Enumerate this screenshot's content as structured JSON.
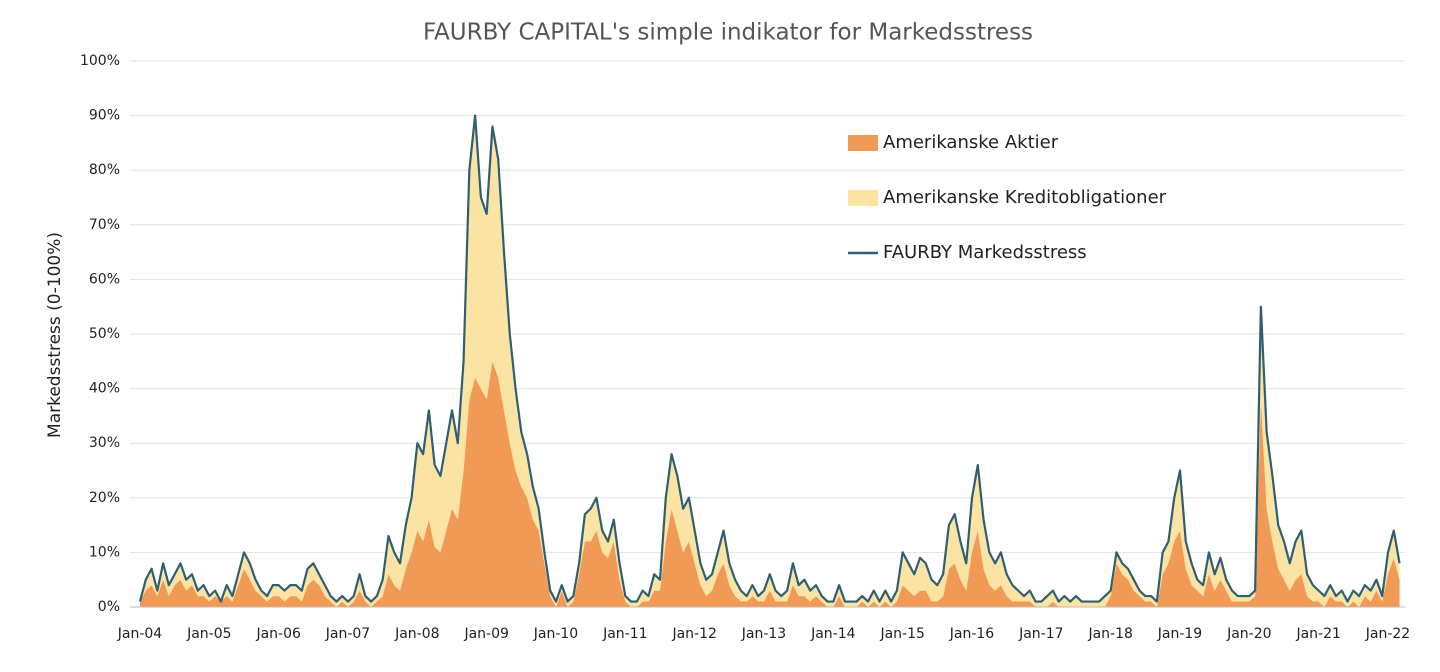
{
  "chart_data": {
    "type": "stacked_area_line",
    "title": "FAURBY CAPITAL's simple indikator for Markedsstress",
    "y_label": "Markedsstress (0-100%)",
    "categories": [
      "Jan-04",
      null,
      null,
      null,
      null,
      null,
      null,
      null,
      null,
      null,
      null,
      null,
      "Jan-05",
      null,
      null,
      null,
      null,
      null,
      null,
      null,
      null,
      null,
      null,
      null,
      "Jan-06",
      null,
      null,
      null,
      null,
      null,
      null,
      null,
      null,
      null,
      null,
      null,
      "Jan-07",
      null,
      null,
      null,
      null,
      null,
      null,
      null,
      null,
      null,
      null,
      null,
      "Jan-08",
      null,
      null,
      null,
      null,
      null,
      null,
      null,
      null,
      null,
      null,
      null,
      "Jan-09",
      null,
      null,
      null,
      null,
      null,
      null,
      null,
      null,
      null,
      null,
      null,
      "Jan-10",
      null,
      null,
      null,
      null,
      null,
      null,
      null,
      null,
      null,
      null,
      null,
      "Jan-11",
      null,
      null,
      null,
      null,
      null,
      null,
      null,
      null,
      null,
      null,
      null,
      "Jan-12",
      null,
      null,
      null,
      null,
      null,
      null,
      null,
      null,
      null,
      null,
      null,
      "Jan-13",
      null,
      null,
      null,
      null,
      null,
      null,
      null,
      null,
      null,
      null,
      null,
      "Jan-14",
      null,
      null,
      null,
      null,
      null,
      null,
      null,
      null,
      null,
      null,
      null,
      "Jan-15",
      null,
      null,
      null,
      null,
      null,
      null,
      null,
      null,
      null,
      null,
      null,
      "Jan-16",
      null,
      null,
      null,
      null,
      null,
      null,
      null,
      null,
      null,
      null,
      null,
      "Jan-17",
      null,
      null,
      null,
      null,
      null,
      null,
      null,
      null,
      null,
      null,
      null,
      "Jan-18",
      null,
      null,
      null,
      null,
      null,
      null,
      null,
      null,
      null,
      null,
      null,
      "Jan-19",
      null,
      null,
      null,
      null,
      null,
      null,
      null,
      null,
      null,
      null,
      null,
      "Jan-20",
      null,
      null,
      null,
      null,
      null,
      null,
      null,
      null,
      null,
      null,
      null,
      "Jan-21",
      null,
      null,
      null,
      null,
      null,
      null,
      null,
      null,
      null,
      null,
      null,
      "Jan-22",
      null,
      null
    ],
    "series": [
      {
        "name": "Amerikanske Aktier",
        "color": "#f19a55",
        "kind": "area",
        "values": [
          1,
          3,
          4,
          2,
          5,
          2,
          4,
          5,
          3,
          4,
          2,
          2,
          1,
          2,
          1,
          2,
          1,
          4,
          7,
          5,
          3,
          2,
          1,
          2,
          2,
          1,
          2,
          2,
          1,
          4,
          5,
          4,
          2,
          1,
          0,
          1,
          0,
          1,
          3,
          1,
          0,
          1,
          2,
          6,
          4,
          3,
          7,
          10,
          14,
          12,
          16,
          11,
          10,
          14,
          18,
          16,
          25,
          38,
          42,
          40,
          38,
          45,
          42,
          36,
          30,
          25,
          22,
          20,
          16,
          14,
          8,
          2,
          0,
          3,
          0,
          1,
          6,
          12,
          12,
          14,
          10,
          9,
          12,
          5,
          1,
          0,
          0,
          1,
          1,
          3,
          3,
          12,
          18,
          14,
          10,
          12,
          8,
          4,
          2,
          3,
          6,
          8,
          4,
          2,
          1,
          1,
          2,
          1,
          1,
          3,
          1,
          1,
          1,
          4,
          2,
          2,
          1,
          2,
          1,
          0,
          0,
          2,
          0,
          0,
          0,
          1,
          0,
          1,
          0,
          1,
          0,
          1,
          4,
          3,
          2,
          3,
          3,
          1,
          1,
          2,
          7,
          8,
          5,
          3,
          10,
          14,
          7,
          4,
          3,
          4,
          2,
          1,
          1,
          1,
          1,
          0,
          0,
          0,
          1,
          0,
          0,
          0,
          0,
          0,
          0,
          0,
          0,
          0,
          2,
          8,
          6,
          5,
          3,
          2,
          1,
          1,
          0,
          6,
          8,
          12,
          14,
          7,
          4,
          3,
          2,
          6,
          3,
          5,
          3,
          1,
          1,
          1,
          1,
          2,
          38,
          18,
          12,
          7,
          5,
          3,
          5,
          6,
          2,
          1,
          1,
          0,
          2,
          1,
          1,
          0,
          1,
          0,
          2,
          1,
          3,
          1,
          6,
          9,
          5
        ]
      },
      {
        "name": "Amerikanske Kreditobligationer",
        "color": "#fbe3a3",
        "kind": "area",
        "values": [
          0,
          2,
          3,
          1,
          3,
          2,
          2,
          3,
          2,
          2,
          1,
          2,
          1,
          1,
          0,
          2,
          1,
          2,
          3,
          3,
          2,
          1,
          1,
          2,
          2,
          2,
          2,
          2,
          2,
          3,
          3,
          2,
          2,
          1,
          1,
          1,
          1,
          1,
          3,
          1,
          1,
          1,
          3,
          7,
          6,
          5,
          8,
          10,
          16,
          16,
          20,
          15,
          14,
          16,
          18,
          14,
          20,
          42,
          48,
          35,
          34,
          43,
          40,
          29,
          20,
          15,
          10,
          8,
          6,
          4,
          2,
          1,
          1,
          1,
          1,
          1,
          2,
          5,
          6,
          6,
          4,
          3,
          4,
          3,
          1,
          1,
          1,
          2,
          1,
          3,
          2,
          8,
          10,
          10,
          8,
          8,
          6,
          4,
          3,
          3,
          4,
          6,
          4,
          3,
          2,
          1,
          2,
          1,
          2,
          3,
          2,
          1,
          2,
          4,
          2,
          3,
          2,
          2,
          1,
          1,
          1,
          2,
          1,
          1,
          1,
          1,
          1,
          2,
          1,
          2,
          1,
          2,
          6,
          5,
          4,
          6,
          5,
          4,
          3,
          4,
          8,
          9,
          7,
          5,
          10,
          12,
          9,
          6,
          5,
          6,
          4,
          3,
          2,
          1,
          2,
          1,
          1,
          2,
          2,
          1,
          2,
          1,
          2,
          1,
          1,
          1,
          1,
          2,
          1,
          2,
          2,
          2,
          2,
          1,
          1,
          1,
          1,
          4,
          4,
          8,
          11,
          5,
          4,
          2,
          2,
          4,
          3,
          4,
          2,
          2,
          1,
          1,
          1,
          1,
          17,
          14,
          12,
          8,
          7,
          5,
          7,
          8,
          4,
          3,
          2,
          2,
          2,
          1,
          2,
          1,
          2,
          2,
          2,
          2,
          2,
          1,
          4,
          5,
          3
        ]
      },
      {
        "name": "FAURBY Markedsstress",
        "color": "#2e5f74",
        "kind": "line",
        "values": [
          1,
          5,
          7,
          3,
          8,
          4,
          6,
          8,
          5,
          6,
          3,
          4,
          2,
          3,
          1,
          4,
          2,
          6,
          10,
          8,
          5,
          3,
          2,
          4,
          4,
          3,
          4,
          4,
          3,
          7,
          8,
          6,
          4,
          2,
          1,
          2,
          1,
          2,
          6,
          2,
          1,
          2,
          5,
          13,
          10,
          8,
          15,
          20,
          30,
          28,
          36,
          26,
          24,
          30,
          36,
          30,
          45,
          80,
          90,
          75,
          72,
          88,
          82,
          65,
          50,
          40,
          32,
          28,
          22,
          18,
          10,
          3,
          1,
          4,
          1,
          2,
          8,
          17,
          18,
          20,
          14,
          12,
          16,
          8,
          2,
          1,
          1,
          3,
          2,
          6,
          5,
          20,
          28,
          24,
          18,
          20,
          14,
          8,
          5,
          6,
          10,
          14,
          8,
          5,
          3,
          2,
          4,
          2,
          3,
          6,
          3,
          2,
          3,
          8,
          4,
          5,
          3,
          4,
          2,
          1,
          1,
          4,
          1,
          1,
          1,
          2,
          1,
          3,
          1,
          3,
          1,
          3,
          10,
          8,
          6,
          9,
          8,
          5,
          4,
          6,
          15,
          17,
          12,
          8,
          20,
          26,
          16,
          10,
          8,
          10,
          6,
          4,
          3,
          2,
          3,
          1,
          1,
          2,
          3,
          1,
          2,
          1,
          2,
          1,
          1,
          1,
          1,
          2,
          3,
          10,
          8,
          7,
          5,
          3,
          2,
          2,
          1,
          10,
          12,
          20,
          25,
          12,
          8,
          5,
          4,
          10,
          6,
          9,
          5,
          3,
          2,
          2,
          2,
          3,
          55,
          32,
          24,
          15,
          12,
          8,
          12,
          14,
          6,
          4,
          3,
          2,
          4,
          2,
          3,
          1,
          3,
          2,
          4,
          3,
          5,
          2,
          10,
          14,
          8
        ]
      }
    ],
    "ylim": [
      0,
      100
    ],
    "yticks": [
      {
        "value": 0,
        "label": "0%"
      },
      {
        "value": 10,
        "label": "10%"
      },
      {
        "value": 20,
        "label": "20%"
      },
      {
        "value": 30,
        "label": "30%"
      },
      {
        "value": 40,
        "label": "40%"
      },
      {
        "value": 50,
        "label": "50%"
      },
      {
        "value": 60,
        "label": "60%"
      },
      {
        "value": 70,
        "label": "70%"
      },
      {
        "value": 80,
        "label": "80%"
      },
      {
        "value": 90,
        "label": "90%"
      },
      {
        "value": 100,
        "label": "100%"
      }
    ],
    "grid": true,
    "legend": "top-right"
  }
}
